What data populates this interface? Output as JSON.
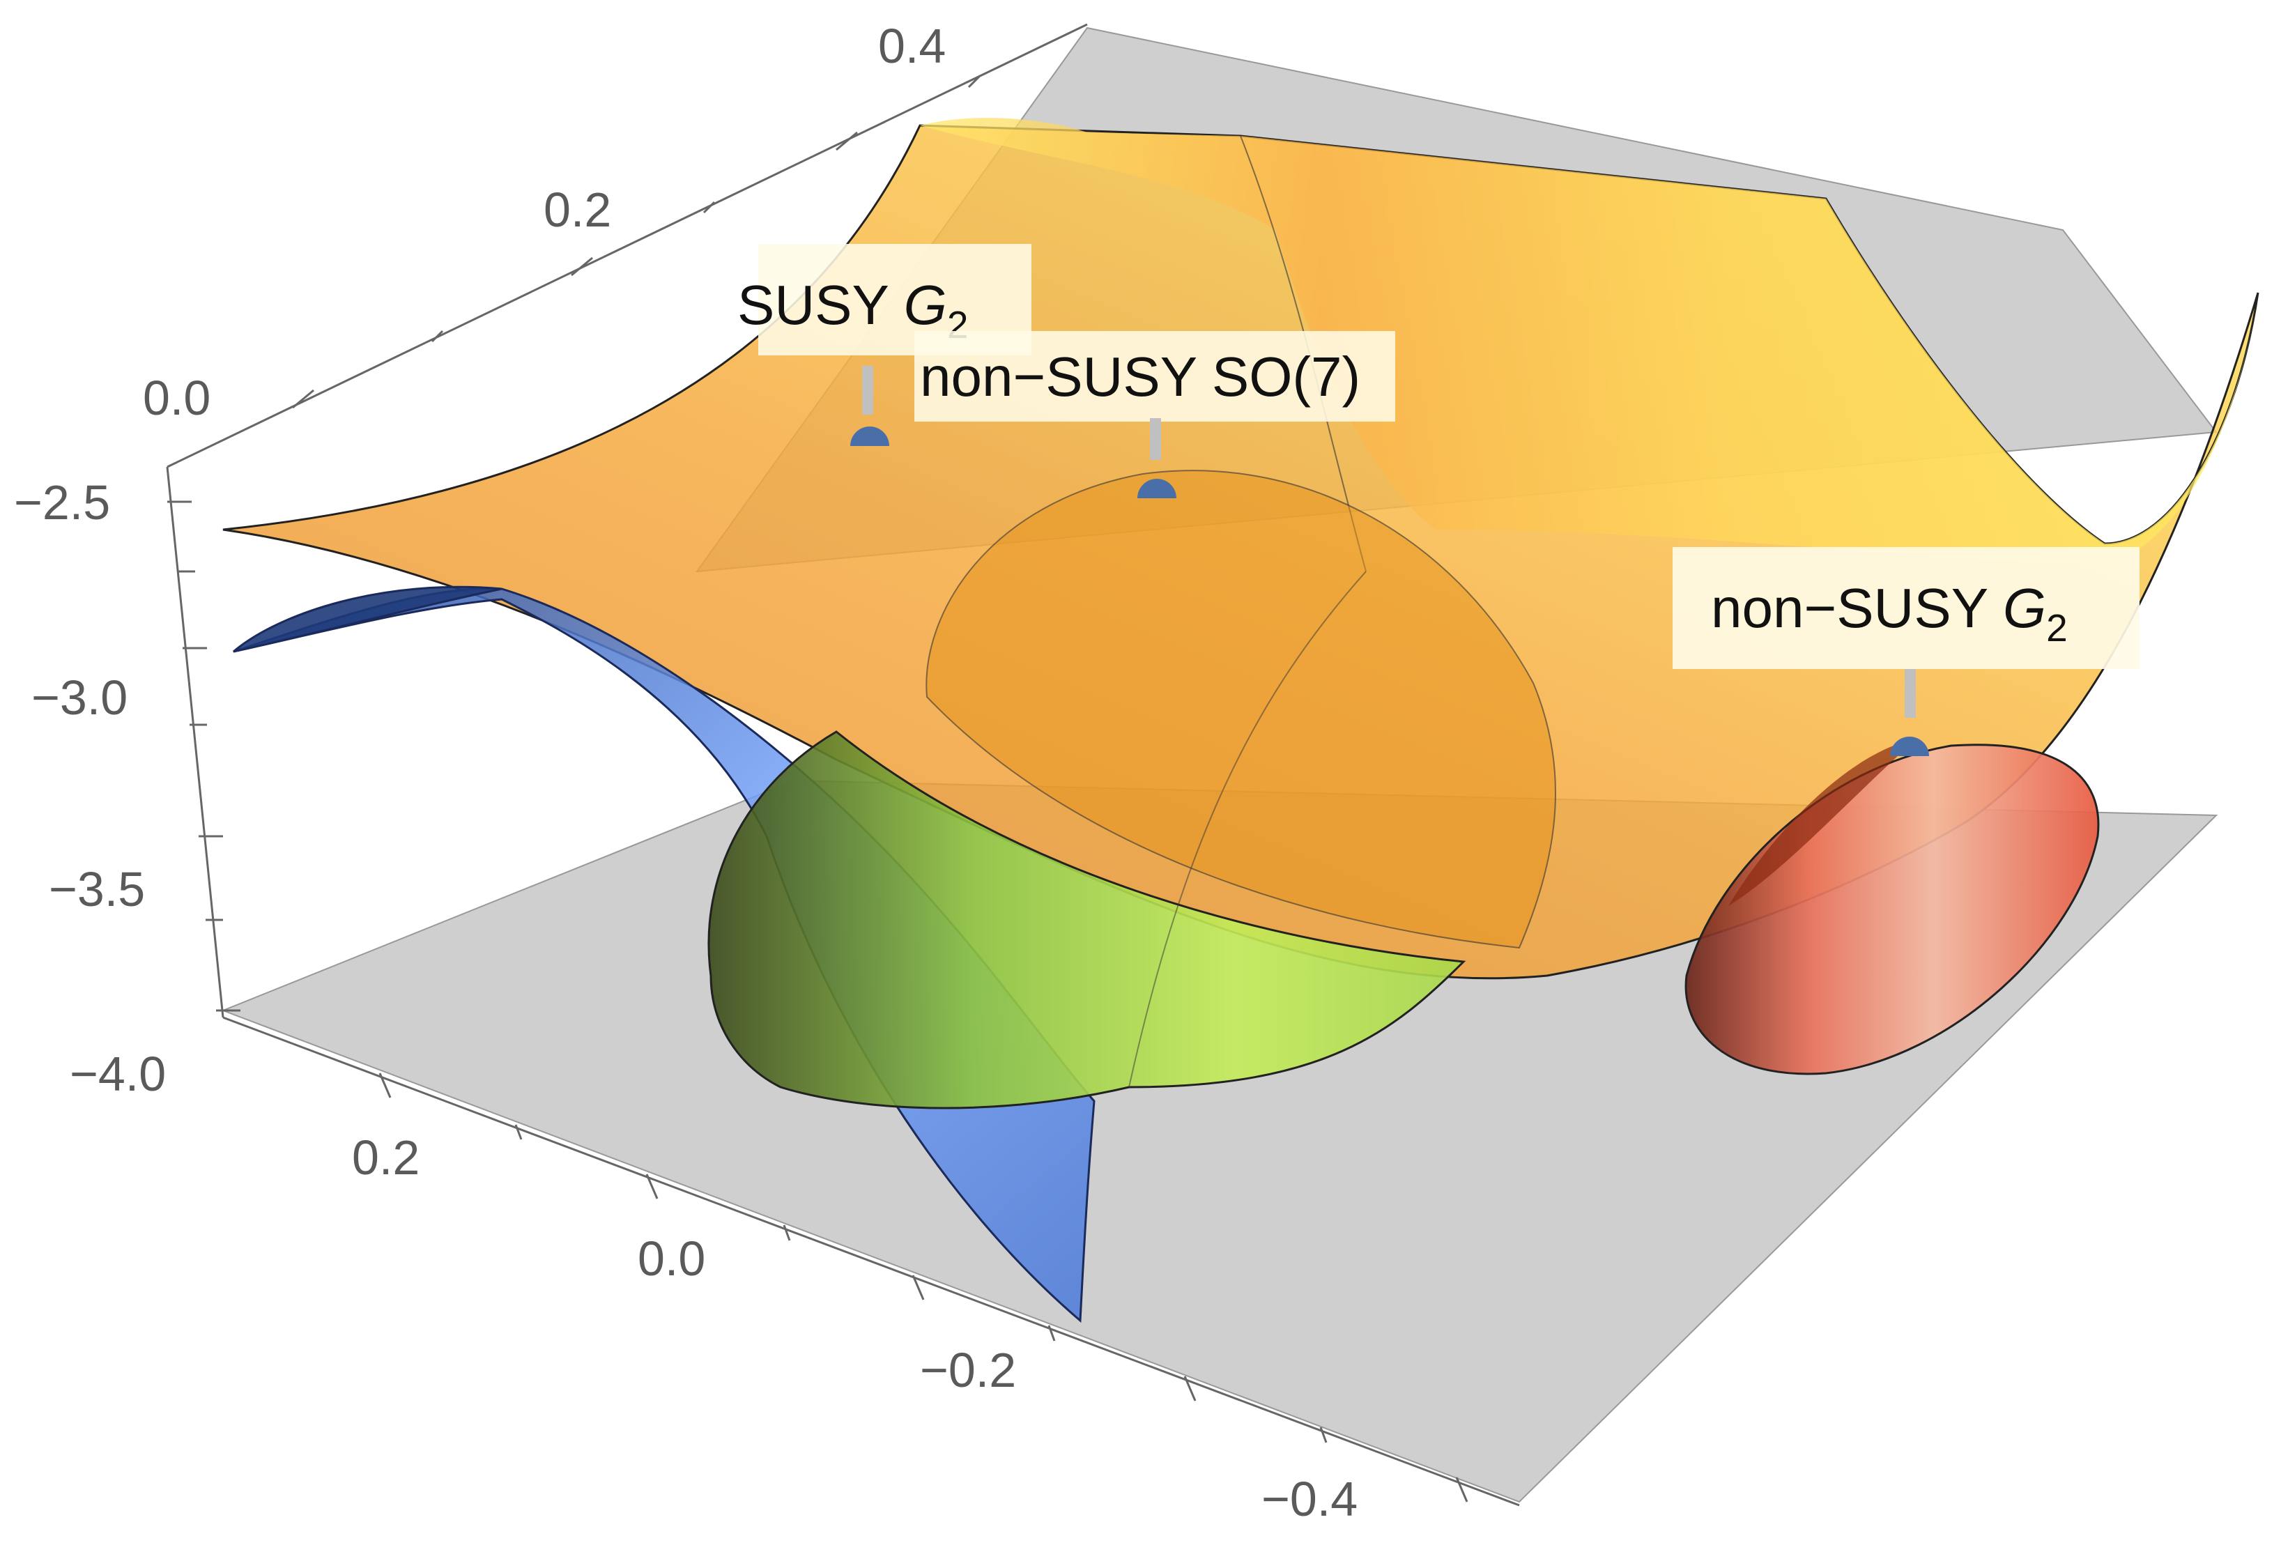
{
  "chart_data": {
    "type": "surface3d",
    "axes": {
      "x": {
        "ticks": [
          "0.2",
          "0.0",
          "−0.2",
          "−0.4"
        ]
      },
      "y": {
        "ticks": [
          "0.0",
          "0.2",
          "0.4"
        ]
      },
      "z": {
        "ticks": [
          "−2.5",
          "−3.0",
          "−3.5",
          "−4.0"
        ]
      }
    },
    "surfaces": [
      {
        "name": "orange-yellow",
        "color": "#f6a530",
        "highlight": "#ffe85a"
      },
      {
        "name": "blue",
        "color": "#4a7fe0"
      },
      {
        "name": "green",
        "color": "#a8d84a"
      },
      {
        "name": "red",
        "color": "#e8604a"
      }
    ],
    "markers": [
      {
        "label_main": "SUSY ",
        "label_sub": "2",
        "label_var": "G"
      },
      {
        "label_main": "non−SUSY SO(7)",
        "label_sub": "",
        "label_var": ""
      },
      {
        "label_main": "non−SUSY ",
        "label_sub": "2",
        "label_var": "G"
      }
    ],
    "marker_color": "#4a6fa8"
  }
}
